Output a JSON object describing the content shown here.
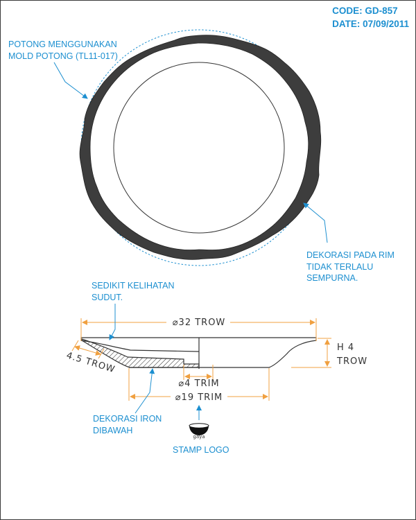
{
  "header": {
    "code": "CODE: GD-857",
    "date": "DATE: 07/09/2011"
  },
  "notes": {
    "cut_mold": [
      "POTONG MENGGUNAKAN",
      "MOLD POTONG (TL11-017)"
    ],
    "rim_decoration": [
      "DEKORASI PADA RIM",
      "TIDAK TERLALU",
      "SEMPURNA."
    ],
    "slight_angle": [
      "SEDIKIT KELIHATAN",
      "SUDUT."
    ],
    "iron_decoration": [
      "DEKORASI IRON",
      "DIBAWAH"
    ],
    "stamp_logo": "STAMP LOGO",
    "stamp_text": "gaya"
  },
  "dimensions": {
    "diameter_trow": "⌀32 TROW",
    "height_line1": "H 4",
    "height_line2": "TROW",
    "rim_width": "4.5 TROW",
    "foot_trim": "⌀4 TRIM",
    "base_trim": "⌀19 TRIM"
  },
  "colors": {
    "annotation": "#1c8fd0",
    "dimension": "#f0a040",
    "outline": "#333333",
    "rim_fill": "#3d3d3d"
  }
}
